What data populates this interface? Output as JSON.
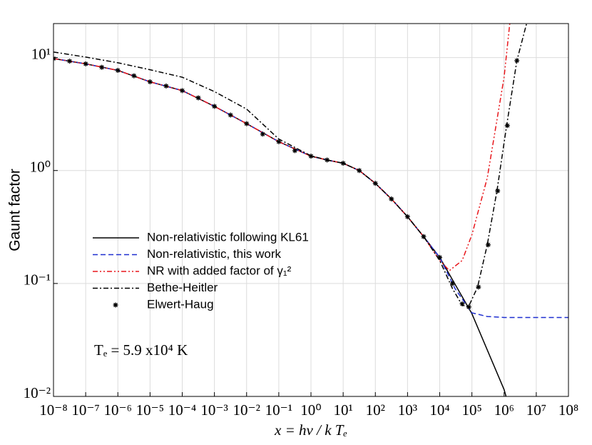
{
  "chart_data": {
    "type": "line",
    "x_label": "x = hν / k Tₑ",
    "y_label": "Gaunt factor",
    "annotation": "Tₑ = 5.9 x10⁴ K",
    "log_x": true,
    "log_y": true,
    "grid": true,
    "legend": "left",
    "xlim": [
      1e-08,
      100000000.0
    ],
    "ylim": [
      0.01,
      20
    ],
    "xticks": [
      {
        "value": 1e-08,
        "label": "10⁻⁸"
      },
      {
        "value": 1e-07,
        "label": "10⁻⁷"
      },
      {
        "value": 1e-06,
        "label": "10⁻⁶"
      },
      {
        "value": 1e-05,
        "label": "10⁻⁵"
      },
      {
        "value": 0.0001,
        "label": "10⁻⁴"
      },
      {
        "value": 0.001,
        "label": "10⁻³"
      },
      {
        "value": 0.01,
        "label": "10⁻²"
      },
      {
        "value": 0.1,
        "label": "10⁻¹"
      },
      {
        "value": 1,
        "label": "10⁰"
      },
      {
        "value": 10,
        "label": "10¹"
      },
      {
        "value": 100,
        "label": "10²"
      },
      {
        "value": 1000,
        "label": "10³"
      },
      {
        "value": 10000.0,
        "label": "10⁴"
      },
      {
        "value": 100000.0,
        "label": "10⁵"
      },
      {
        "value": 1000000.0,
        "label": "10⁶"
      },
      {
        "value": 10000000.0,
        "label": "10⁷"
      },
      {
        "value": 100000000.0,
        "label": "10⁸"
      }
    ],
    "yticks": [
      {
        "value": 0.01,
        "label": "10⁻²"
      },
      {
        "value": 0.1,
        "label": "10⁻¹"
      },
      {
        "value": 1,
        "label": "10⁰"
      },
      {
        "value": 10,
        "label": "10¹"
      }
    ],
    "series": [
      {
        "name": "Non-relativistic following KL61",
        "color": "#000000",
        "style": "solid",
        "x": [
          1e-08,
          1e-07,
          1e-06,
          1e-05,
          0.0001,
          0.001,
          0.01,
          0.1,
          1,
          3.16,
          10,
          31.6,
          100,
          316,
          1000,
          3160,
          10000.0,
          100000.0,
          1000000.0,
          1150000.0
        ],
        "values": [
          9.8,
          8.8,
          7.7,
          6.1,
          5.1,
          3.7,
          2.6,
          1.8,
          1.34,
          1.24,
          1.16,
          1.0,
          0.77,
          0.56,
          0.39,
          0.26,
          0.17,
          0.054,
          0.0115,
          0.01
        ]
      },
      {
        "name": "Non-relativistic, this work",
        "color": "#1f2fd0",
        "style": "dashed",
        "x": [
          1e-08,
          1e-07,
          1e-06,
          1e-05,
          0.0001,
          0.001,
          0.01,
          0.1,
          1,
          3.16,
          10,
          31.6,
          100,
          316,
          1000,
          3160,
          10000.0,
          30000.0,
          100000.0,
          300000.0,
          1000000.0,
          100000000.0
        ],
        "values": [
          9.8,
          8.8,
          7.7,
          6.1,
          5.1,
          3.7,
          2.6,
          1.8,
          1.34,
          1.24,
          1.16,
          1.0,
          0.77,
          0.56,
          0.39,
          0.26,
          0.17,
          0.09,
          0.055,
          0.051,
          0.05,
          0.05
        ]
      },
      {
        "name": "NR with added factor of γ₁²",
        "color": "#e8161b",
        "style": "dashdotdot",
        "x": [
          1e-08,
          1e-07,
          1e-06,
          1e-05,
          0.0001,
          0.001,
          0.01,
          0.1,
          1,
          3.16,
          10,
          31.6,
          100,
          316,
          1000,
          3160,
          10000.0,
          20000.0,
          50000.0,
          100000.0,
          300000.0,
          1000000.0,
          1500000.0
        ],
        "values": [
          9.8,
          8.8,
          7.7,
          6.1,
          5.1,
          3.7,
          2.6,
          1.8,
          1.34,
          1.24,
          1.16,
          1.0,
          0.77,
          0.56,
          0.39,
          0.26,
          0.16,
          0.13,
          0.16,
          0.27,
          0.86,
          6.7,
          20
        ]
      },
      {
        "name": "Bethe-Heitler",
        "color": "#000000",
        "style": "dashdot",
        "x": [
          1e-08,
          1e-07,
          1e-06,
          1e-05,
          0.0001,
          0.001,
          0.01,
          0.1,
          1,
          3.16,
          10,
          31.6,
          100,
          316,
          1000,
          3160,
          10000.0,
          25000.0,
          50000.0,
          80000.0,
          150000.0,
          300000.0,
          600000.0,
          1200000.0,
          2500000.0,
          5000000.0
        ],
        "values": [
          11.2,
          10.1,
          9,
          7.8,
          6.7,
          5,
          3.5,
          1.9,
          1.35,
          1.24,
          1.16,
          1.0,
          0.77,
          0.56,
          0.39,
          0.26,
          0.16,
          0.09,
          0.064,
          0.063,
          0.093,
          0.22,
          0.66,
          2.5,
          9.4,
          20
        ]
      },
      {
        "name": "Elwert-Haug",
        "color": "#000000",
        "style": "none",
        "marker": "star",
        "x": [
          1e-08,
          3.16e-08,
          1e-07,
          3.16e-07,
          1e-06,
          3.16e-06,
          1e-05,
          3.16e-05,
          0.0001,
          0.000316,
          0.001,
          0.00316,
          0.01,
          0.0316,
          0.1,
          0.316,
          1,
          3.16,
          10,
          31.6,
          100,
          316,
          1000,
          3160,
          10000.0,
          25000.0,
          50000.0,
          80000.0,
          160000.0,
          320000.0,
          630000.0,
          1260000.0,
          2500000.0
        ],
        "values": [
          9.8,
          9.3,
          8.8,
          8.2,
          7.7,
          6.9,
          6.1,
          5.6,
          5.1,
          4.4,
          3.7,
          3.1,
          2.6,
          2.1,
          1.8,
          1.5,
          1.34,
          1.24,
          1.16,
          1.0,
          0.77,
          0.56,
          0.39,
          0.26,
          0.17,
          0.1,
          0.066,
          0.062,
          0.093,
          0.22,
          0.66,
          2.5,
          9.4
        ]
      }
    ]
  }
}
